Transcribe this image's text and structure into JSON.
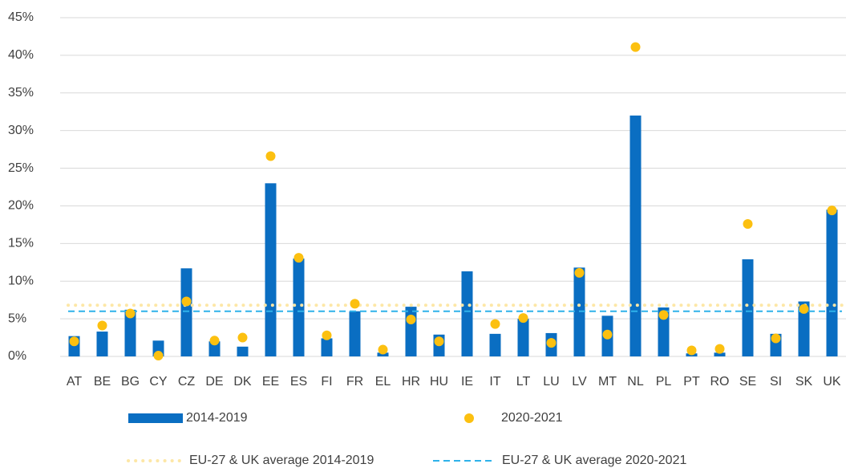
{
  "chart_data": {
    "type": "bar_dot",
    "categories": [
      "AT",
      "BE",
      "BG",
      "CY",
      "CZ",
      "DE",
      "DK",
      "EE",
      "ES",
      "FI",
      "FR",
      "EL",
      "HR",
      "HU",
      "IE",
      "IT",
      "LT",
      "LU",
      "LV",
      "MT",
      "NL",
      "PL",
      "PT",
      "RO",
      "SE",
      "SI",
      "SK",
      "UK"
    ],
    "series": [
      {
        "name": "2014-2019",
        "color": "#0a6ec2",
        "kind": "bar",
        "values": [
          2.7,
          3.3,
          6.2,
          2.1,
          11.7,
          2.0,
          1.3,
          23.0,
          13.0,
          2.4,
          6.0,
          0.5,
          6.6,
          2.9,
          11.3,
          3.0,
          5.0,
          3.1,
          11.8,
          5.4,
          32.0,
          6.5,
          0.4,
          0.5,
          12.9,
          3.0,
          7.3,
          19.5
        ]
      },
      {
        "name": "2020-2021",
        "color": "#fcc010",
        "kind": "dot",
        "values": [
          2.0,
          4.1,
          5.7,
          0.1,
          7.3,
          2.1,
          2.5,
          26.6,
          13.1,
          2.8,
          7.0,
          0.9,
          4.9,
          2.0,
          null,
          4.3,
          5.1,
          1.8,
          11.1,
          2.9,
          41.1,
          5.5,
          0.8,
          1.0,
          17.6,
          2.4,
          6.3,
          19.4
        ]
      },
      {
        "name": "EU-27 & UK average 2014-2019",
        "color": "#fde7a6",
        "kind": "dotted",
        "value": 6.8
      },
      {
        "name": "EU-27 & UK average 2020-2021",
        "color": "#2fb2ea",
        "kind": "dashed",
        "value": 6.0
      }
    ],
    "ylim": [
      0,
      45
    ],
    "yticks": [
      {
        "value": 0,
        "label": "0%"
      },
      {
        "value": 5,
        "label": "5%"
      },
      {
        "value": 10,
        "label": "10%"
      },
      {
        "value": 15,
        "label": "15%"
      },
      {
        "value": 20,
        "label": "20%"
      },
      {
        "value": 25,
        "label": "25%"
      },
      {
        "value": 30,
        "label": "30%"
      },
      {
        "value": 35,
        "label": "35%"
      },
      {
        "value": 40,
        "label": "40%"
      },
      {
        "value": 45,
        "label": "45%"
      }
    ],
    "grid": true
  }
}
